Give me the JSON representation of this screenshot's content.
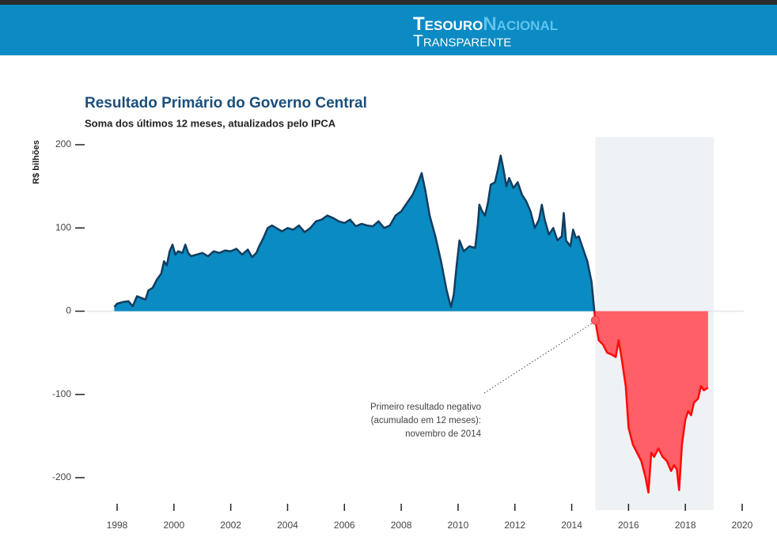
{
  "header": {
    "logo_word1": "Tesouro",
    "logo_word2": "Nacional",
    "logo_word3": "Transparente"
  },
  "chart_data": {
    "type": "area",
    "title": "Resultado Primário do Governo Central",
    "subtitle": "Soma dos últimos 12 meses, atualizados pelo IPCA",
    "y_label": "R$ bilhões",
    "x": [
      1997.9,
      1998.0,
      1998.2,
      1998.4,
      1998.55,
      1998.7,
      1998.85,
      1999.0,
      1999.1,
      1999.25,
      1999.4,
      1999.55,
      1999.65,
      1999.75,
      1999.85,
      1999.95,
      2000.05,
      2000.15,
      2000.3,
      2000.4,
      2000.5,
      2000.6,
      2000.8,
      2001.0,
      2001.2,
      2001.4,
      2001.6,
      2001.8,
      2002.0,
      2002.2,
      2002.4,
      2002.6,
      2002.75,
      2002.9,
      2003.0,
      2003.15,
      2003.3,
      2003.45,
      2003.6,
      2003.8,
      2004.0,
      2004.2,
      2004.4,
      2004.6,
      2004.8,
      2005.0,
      2005.2,
      2005.4,
      2005.6,
      2005.8,
      2006.0,
      2006.2,
      2006.4,
      2006.6,
      2006.8,
      2007.0,
      2007.2,
      2007.4,
      2007.6,
      2007.8,
      2008.0,
      2008.2,
      2008.4,
      2008.6,
      2008.72,
      2008.85,
      2009.0,
      2009.2,
      2009.4,
      2009.6,
      2009.75,
      2009.85,
      2009.95,
      2010.05,
      2010.2,
      2010.4,
      2010.6,
      2010.7,
      2010.75,
      2010.85,
      2010.95,
      2011.05,
      2011.15,
      2011.3,
      2011.4,
      2011.5,
      2011.6,
      2011.7,
      2011.8,
      2011.95,
      2012.1,
      2012.25,
      2012.4,
      2012.55,
      2012.7,
      2012.85,
      2012.95,
      2013.05,
      2013.2,
      2013.35,
      2013.5,
      2013.65,
      2013.72,
      2013.8,
      2013.95,
      2014.05,
      2014.15,
      2014.25,
      2014.4,
      2014.55,
      2014.7,
      2014.83,
      2014.95,
      2015.1,
      2015.25,
      2015.4,
      2015.55,
      2015.65,
      2015.75,
      2015.9,
      2016.0,
      2016.15,
      2016.3,
      2016.45,
      2016.6,
      2016.7,
      2016.8,
      2016.9,
      2017.05,
      2017.2,
      2017.35,
      2017.5,
      2017.6,
      2017.7,
      2017.78,
      2017.88,
      2018.0,
      2018.1,
      2018.2,
      2018.3,
      2018.45,
      2018.55,
      2018.65,
      2018.8
    ],
    "values": [
      5,
      9,
      11,
      12,
      6,
      18,
      16,
      14,
      25,
      28,
      38,
      45,
      60,
      55,
      72,
      80,
      68,
      72,
      70,
      80,
      70,
      66,
      68,
      70,
      66,
      72,
      70,
      73,
      72,
      75,
      68,
      74,
      65,
      70,
      78,
      88,
      100,
      103,
      100,
      96,
      100,
      98,
      103,
      95,
      100,
      108,
      110,
      115,
      112,
      108,
      106,
      110,
      102,
      105,
      103,
      102,
      108,
      100,
      103,
      115,
      120,
      130,
      140,
      155,
      166,
      145,
      115,
      90,
      60,
      25,
      5,
      20,
      55,
      85,
      72,
      78,
      76,
      105,
      128,
      120,
      115,
      130,
      152,
      155,
      170,
      187,
      170,
      150,
      160,
      148,
      155,
      140,
      132,
      120,
      100,
      110,
      128,
      110,
      92,
      100,
      85,
      90,
      118,
      85,
      78,
      98,
      88,
      90,
      75,
      60,
      35,
      -11,
      -35,
      -40,
      -50,
      -52,
      -55,
      -35,
      -55,
      -90,
      -140,
      -160,
      -170,
      -180,
      -200,
      -218,
      -170,
      -175,
      -165,
      -175,
      -180,
      -192,
      -185,
      -190,
      -215,
      -160,
      -130,
      -120,
      -125,
      -110,
      -105,
      -90,
      -95,
      -92
    ],
    "color": "#0a8bc2",
    "line_color": "#123d60",
    "negative_color": "#ff5f66",
    "negative_line_color": "#ff0a0a",
    "shaded_range": [
      2014.83,
      2019
    ],
    "shaded_color": "#eef2f5",
    "xlim": [
      1998,
      2020
    ],
    "xticks": [
      1998,
      2000,
      2002,
      2004,
      2006,
      2008,
      2010,
      2012,
      2014,
      2016,
      2018,
      2020
    ],
    "ylim": [
      -200,
      200
    ],
    "yticks": [
      -200,
      -100,
      0,
      100,
      200
    ],
    "annotation": {
      "lines": [
        "Primeiro resultado negativo",
        "(acumulado em 12 meses):",
        "novembro de 2014"
      ],
      "x": 2014.83,
      "y": -11
    }
  }
}
